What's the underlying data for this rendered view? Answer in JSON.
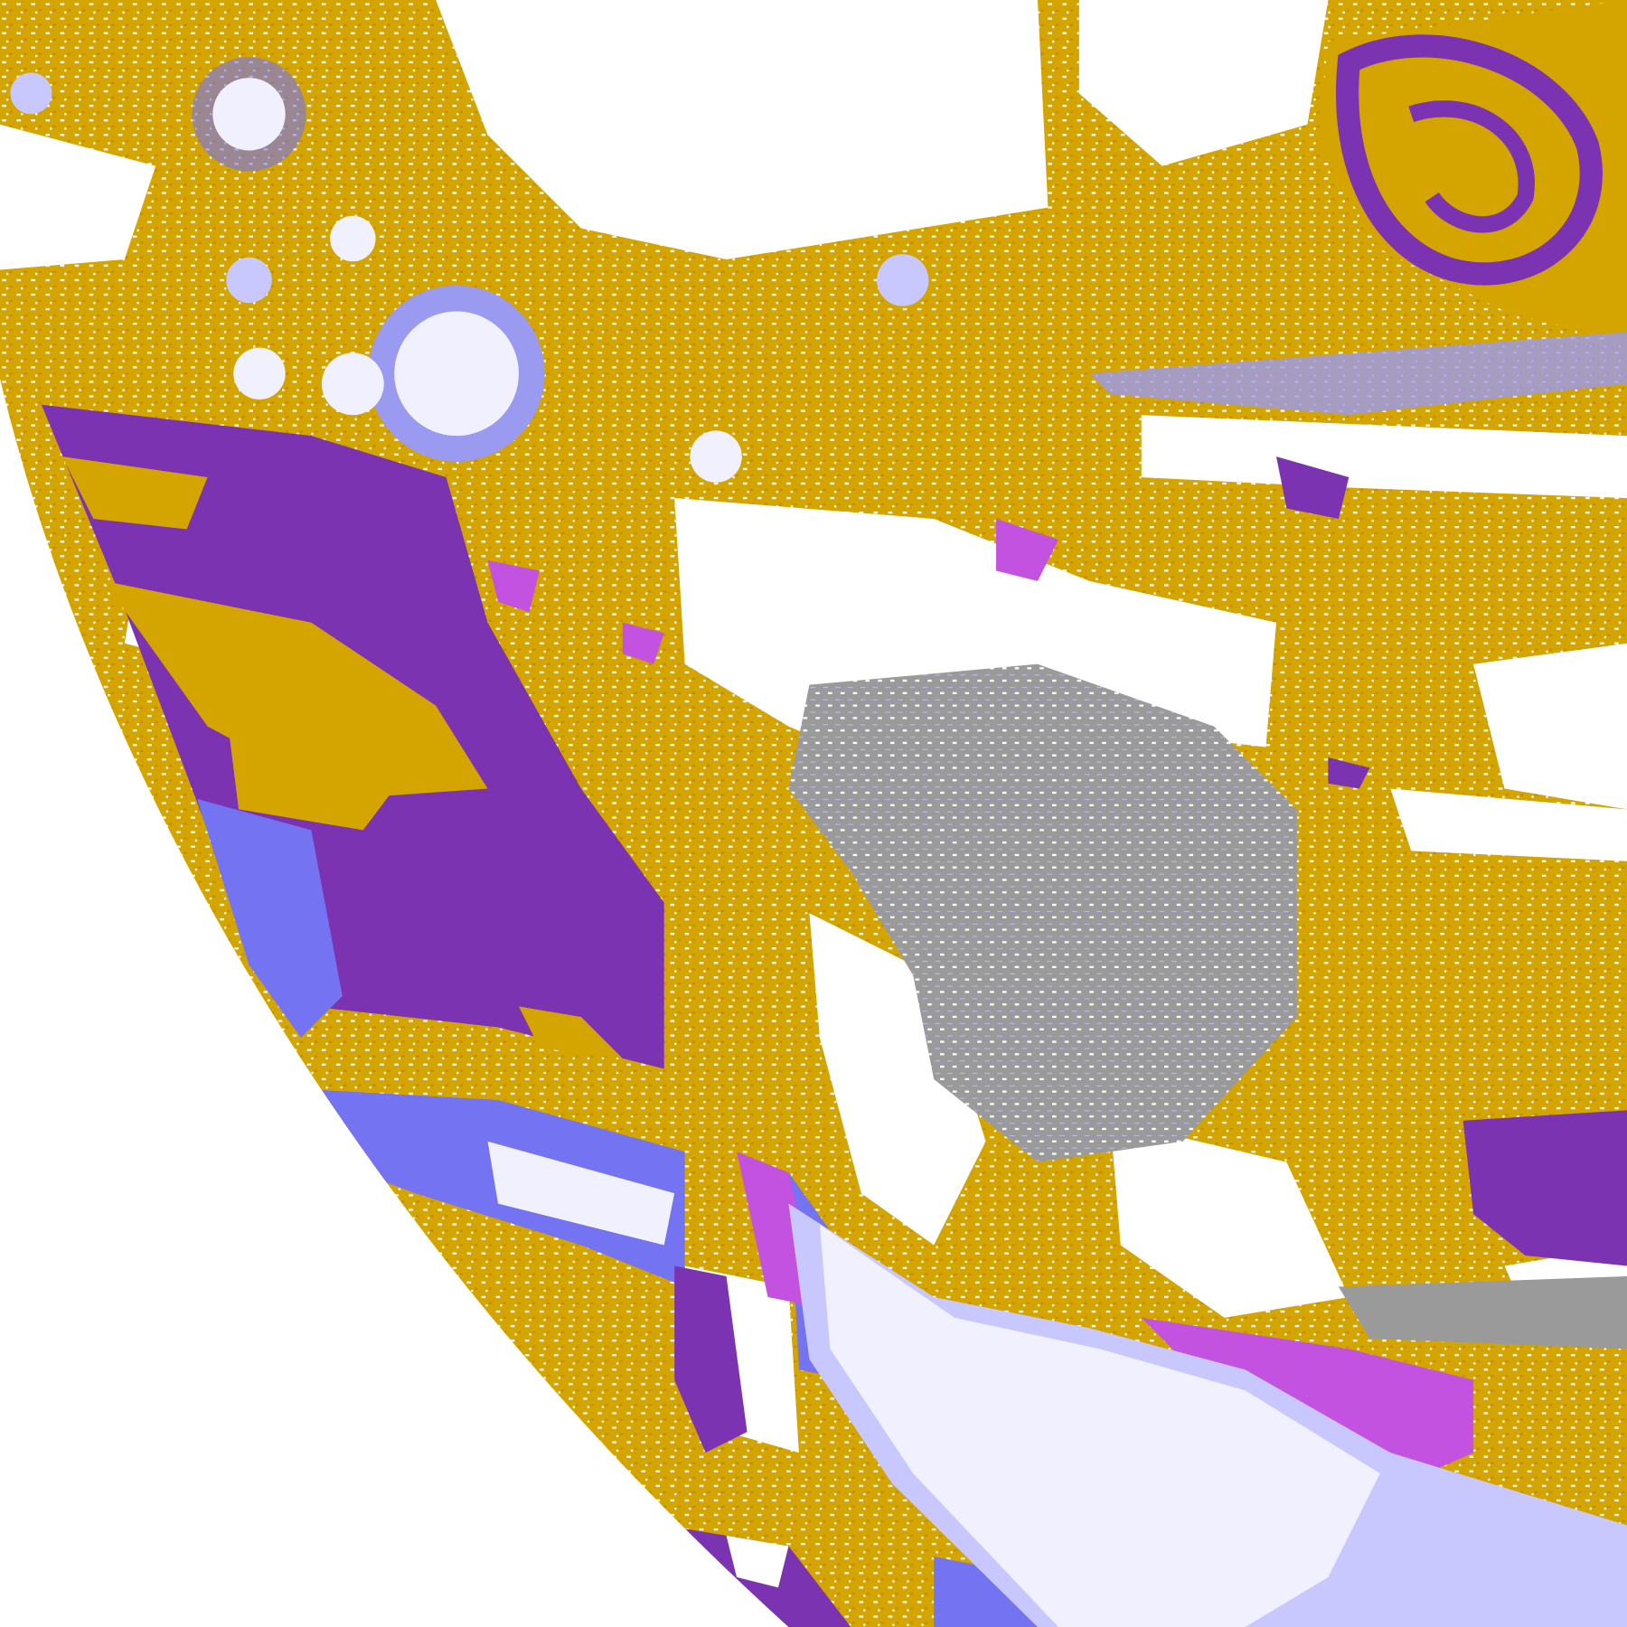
{
  "image": {
    "kind": "false-color satellite classification of Earth limb",
    "palette": {
      "space": "#ffffff",
      "land_gold": "#d4a400",
      "gold_dark": "#c08f00",
      "deep_purple": "#7b33b2",
      "blue_violet": "#7474f2",
      "lavender": "#f0f0ff",
      "periwinkle": "#c8c8ff",
      "magenta": "#c452e0",
      "gray": "#9a9a9a",
      "cloud_white": "#ffffff"
    }
  }
}
